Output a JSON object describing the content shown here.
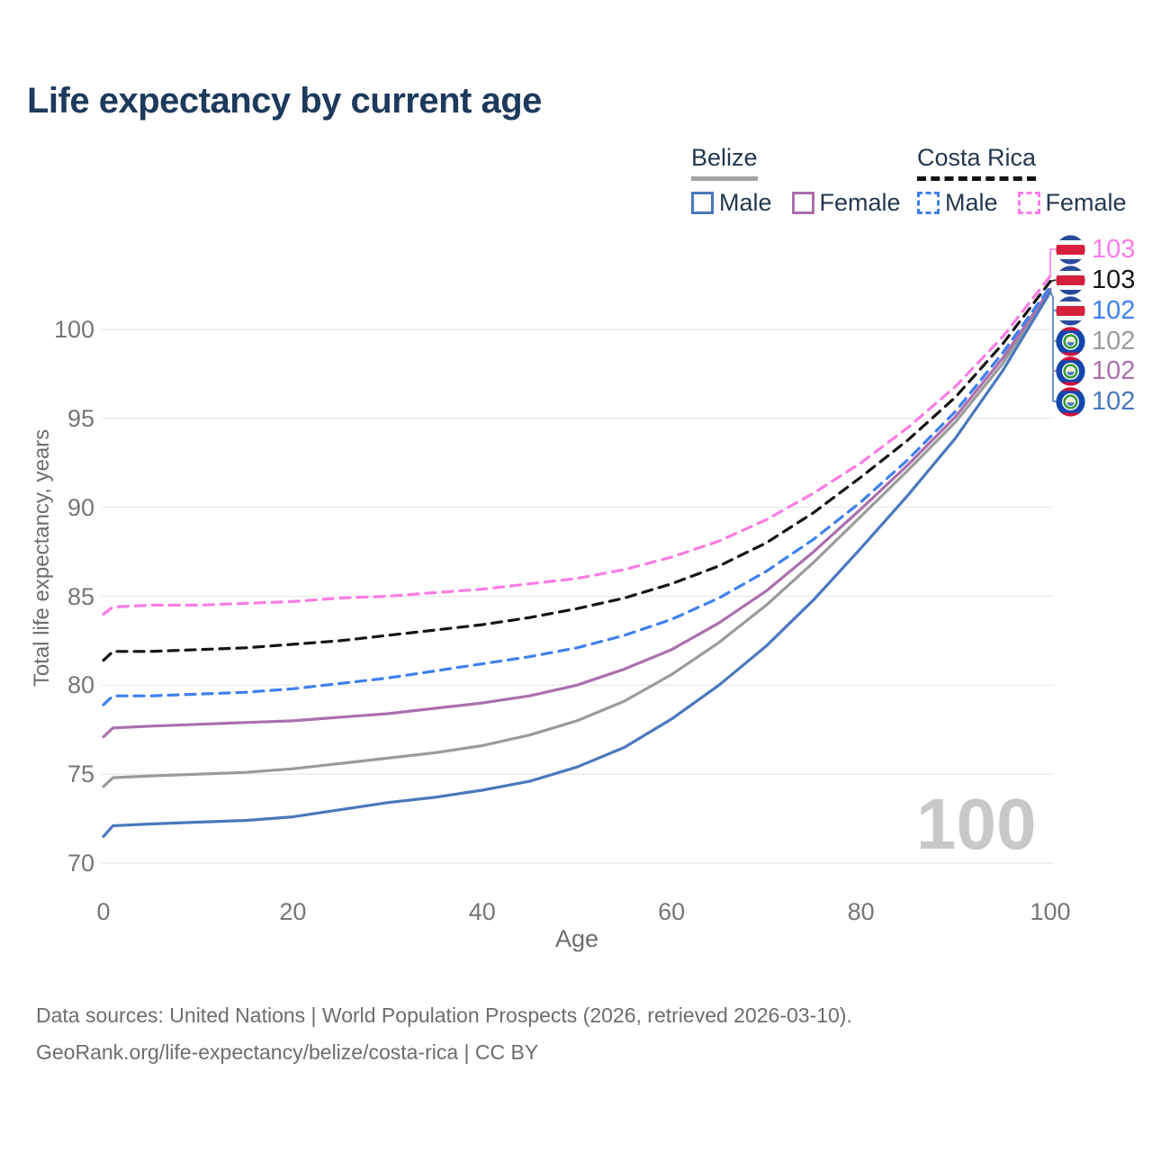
{
  "title": "Life expectancy by current age",
  "legend": {
    "groups": [
      {
        "name": "Belize",
        "line_style": "solid",
        "underline_color": "#a3a3a3",
        "items": [
          {
            "label": "Male",
            "color": "#4a78bc"
          },
          {
            "label": "Female",
            "color": "#ab6fad"
          }
        ]
      },
      {
        "name": "Costa Rica",
        "line_style": "dashed",
        "underline_color": "#141414",
        "items": [
          {
            "label": "Male",
            "color": "#3f80ee"
          },
          {
            "label": "Female",
            "color": "#fb7ce4"
          }
        ]
      }
    ]
  },
  "watermark_age": "100",
  "footer": {
    "line1": "Data sources: United Nations | World Population Prospects (2026, retrieved 2026-03-10).",
    "line2": "GeoRank.org/life-expectancy/belize/costa-rica | CC BY"
  },
  "chart_data": {
    "type": "line",
    "title": "Life expectancy by current age",
    "xlabel": "Age",
    "ylabel": "Total life expectancy, years",
    "xlim": [
      0,
      100
    ],
    "ylim": [
      70,
      103.5
    ],
    "x_ticks": [
      0,
      20,
      40,
      60,
      80,
      100
    ],
    "y_ticks": [
      70,
      75,
      80,
      85,
      90,
      95,
      100
    ],
    "grid": "horizontal",
    "grid_color": "#ececec",
    "legend_position": "top-right",
    "x": [
      0,
      1,
      5,
      10,
      15,
      20,
      25,
      30,
      35,
      40,
      45,
      50,
      55,
      60,
      65,
      70,
      75,
      80,
      85,
      90,
      95,
      100
    ],
    "series": [
      {
        "name": "Costa Rica — Female",
        "country": "Costa Rica",
        "sex": "Female",
        "flag": "costa-rica",
        "color": "#fb7ce4",
        "dashed": true,
        "end_label": "103",
        "values": [
          84.0,
          84.4,
          84.5,
          84.5,
          84.6,
          84.7,
          84.9,
          85.0,
          85.2,
          85.4,
          85.7,
          86.0,
          86.5,
          87.2,
          88.1,
          89.3,
          90.8,
          92.5,
          94.5,
          96.8,
          99.6,
          103.0
        ]
      },
      {
        "name": "Costa Rica — Both sexes",
        "country": "Costa Rica",
        "sex": "Both",
        "flag": "costa-rica",
        "color": "#141414",
        "dashed": true,
        "end_label": "103",
        "values": [
          81.4,
          81.9,
          81.9,
          82.0,
          82.1,
          82.3,
          82.5,
          82.8,
          83.1,
          83.4,
          83.8,
          84.3,
          84.9,
          85.7,
          86.7,
          88.0,
          89.7,
          91.7,
          93.8,
          96.2,
          99.2,
          102.7
        ]
      },
      {
        "name": "Costa Rica — Male",
        "country": "Costa Rica",
        "sex": "Male",
        "flag": "costa-rica",
        "color": "#3f80ee",
        "dashed": true,
        "end_label": "102",
        "values": [
          78.9,
          79.4,
          79.4,
          79.5,
          79.6,
          79.8,
          80.1,
          80.4,
          80.8,
          81.2,
          81.6,
          82.1,
          82.8,
          83.7,
          84.9,
          86.4,
          88.2,
          90.3,
          92.7,
          95.4,
          98.7,
          102.4
        ]
      },
      {
        "name": "Belize — Both sexes",
        "country": "Belize",
        "sex": "Both",
        "flag": "belize",
        "color": "#9b9b9b",
        "dashed": false,
        "end_label": "102",
        "values": [
          74.3,
          74.8,
          74.9,
          75.0,
          75.1,
          75.3,
          75.6,
          75.9,
          76.2,
          76.6,
          77.2,
          78.0,
          79.1,
          80.6,
          82.4,
          84.5,
          86.9,
          89.5,
          92.1,
          94.8,
          98.1,
          102.2
        ]
      },
      {
        "name": "Belize — Female",
        "country": "Belize",
        "sex": "Female",
        "flag": "belize",
        "color": "#ab6fad",
        "dashed": false,
        "end_label": "102",
        "values": [
          77.1,
          77.6,
          77.7,
          77.8,
          77.9,
          78.0,
          78.2,
          78.4,
          78.7,
          79.0,
          79.4,
          80.0,
          80.9,
          82.0,
          83.5,
          85.3,
          87.5,
          89.9,
          92.4,
          95.1,
          98.4,
          102.25
        ]
      },
      {
        "name": "Belize — Male",
        "country": "Belize",
        "sex": "Male",
        "flag": "belize",
        "color": "#4a78bc",
        "dashed": false,
        "end_label": "102",
        "values": [
          71.5,
          72.1,
          72.2,
          72.3,
          72.4,
          72.6,
          73.0,
          73.4,
          73.7,
          74.1,
          74.6,
          75.4,
          76.5,
          78.1,
          80.0,
          82.2,
          84.8,
          87.7,
          90.7,
          93.9,
          97.7,
          102.1
        ]
      }
    ]
  }
}
